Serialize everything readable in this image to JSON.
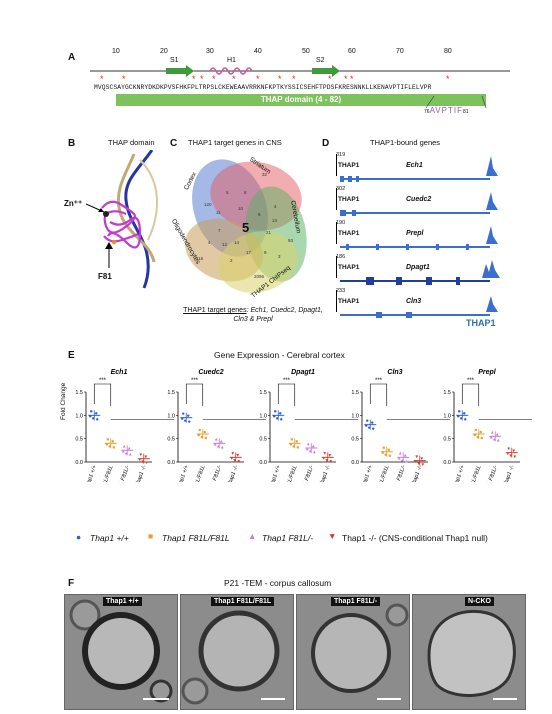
{
  "panels": {
    "a": "A",
    "b": "B",
    "c": "C",
    "d": "D",
    "e": "E",
    "f": "F"
  },
  "panel_a": {
    "ticks": [
      "10",
      "20",
      "30",
      "40",
      "50",
      "60",
      "70",
      "80"
    ],
    "structure_labels": {
      "s1": "S1",
      "h1": "H1",
      "s2": "S2"
    },
    "sequence": "MVQSCSAYGCKNRYDKDKPVSFHKFPLTRPSLCKEWEAAVRRKNFKPTKYSSICSEHFTPDSFKRESNNKLLKENAVPTIFLELVPR",
    "domain_label": "THAP domain (4 - 82)",
    "motif": "AVPTIF",
    "motif_prefix": "76",
    "motif_suffix": "81"
  },
  "panel_b": {
    "title": "THAP domain",
    "zn_label": "Zn⁺⁺",
    "f81_label": "F81"
  },
  "panel_c": {
    "title": "THAP1 target genes in CNS",
    "sets": [
      "Cortex",
      "Striatum",
      "Cerebellum",
      "Oligodendrocytes",
      "THAP1 ChIPseq"
    ],
    "center": "5",
    "region_counts": [
      "120",
      "32",
      "93",
      "116",
      "2096",
      "5",
      "8",
      "4",
      "7",
      "3",
      "2",
      "9",
      "11",
      "6",
      "14",
      "21",
      "10",
      "12",
      "13",
      "17",
      "4"
    ],
    "caption_prefix": "THAP1 target genes",
    "caption_genes": ": Ech1, Cuedc2, Dpagt1, Cln3 & Prepl"
  },
  "panel_d": {
    "title": "THAP1-bound genes",
    "tracks": [
      {
        "scale": "319",
        "label": "THAP1",
        "gene": "Ech1"
      },
      {
        "scale": "302",
        "label": "THAP1",
        "gene": "Cuedc2"
      },
      {
        "scale": "190",
        "label": "THAP1",
        "gene": "Prepl"
      },
      {
        "scale": "186",
        "label": "THAP1",
        "gene": "Dpagt1"
      },
      {
        "scale": "233",
        "label": "THAP1",
        "gene": "Cln3"
      }
    ],
    "legend": "THAP1"
  },
  "panel_e": {
    "title": "Gene Expression - Cerebral cortex",
    "ylabel": "Fold Change",
    "yticks": [
      "1.5",
      "1.0",
      "0.5",
      "0.0"
    ],
    "sig": "***",
    "genes": [
      "Ech1",
      "Cuedc2",
      "Dpagt1",
      "Cln3",
      "Prepl"
    ],
    "xlabels": [
      "Thap1 +/+",
      "Thap1 F81L/F81L",
      "Thap1 F81L/-",
      "Thap1 -/-"
    ],
    "legend": [
      {
        "label": "Thap1 +/+",
        "color": "#2b5fd1"
      },
      {
        "label": "Thap1 F81L/F81L",
        "color": "#e6a02d"
      },
      {
        "label": "Thap1 F81L/-",
        "color": "#c97bd6"
      },
      {
        "label": "Thap1 -/- (CNS-conditional Thap1 null)",
        "color": "#d23b2b"
      }
    ]
  },
  "chart_data": [
    {
      "type": "scatter",
      "title": "Ech1",
      "ylabel": "Fold Change",
      "ylim": [
        0,
        1.5
      ],
      "categories": [
        "Thap1 +/+",
        "Thap1 F81L/F81L",
        "Thap1 F81L/-",
        "Thap1 -/-"
      ],
      "values": [
        1.0,
        0.4,
        0.25,
        0.07
      ]
    },
    {
      "type": "scatter",
      "title": "Cuedc2",
      "ylabel": "Fold Change",
      "ylim": [
        0,
        1.5
      ],
      "categories": [
        "Thap1 +/+",
        "Thap1 F81L/F81L",
        "Thap1 F81L/-",
        "Thap1 -/-"
      ],
      "values": [
        0.95,
        0.6,
        0.4,
        0.1
      ]
    },
    {
      "type": "scatter",
      "title": "Dpagt1",
      "ylabel": "Fold Change",
      "ylim": [
        0,
        1.5
      ],
      "categories": [
        "Thap1 +/+",
        "Thap1 F81L/F81L",
        "Thap1 F81L/-",
        "Thap1 -/-"
      ],
      "values": [
        1.0,
        0.4,
        0.3,
        0.1
      ]
    },
    {
      "type": "scatter",
      "title": "Cln3",
      "ylabel": "Fold Change",
      "ylim": [
        0,
        1.5
      ],
      "categories": [
        "Thap1 +/+",
        "Thap1 F81L/F81L",
        "Thap1 F81L/-",
        "Thap1 -/-"
      ],
      "values": [
        0.8,
        0.22,
        0.1,
        0.03
      ]
    },
    {
      "type": "scatter",
      "title": "Prepl",
      "ylabel": "Fold Change",
      "ylim": [
        0,
        1.5
      ],
      "categories": [
        "Thap1 +/+",
        "Thap1 F81L/F81L",
        "Thap1 F81L/-",
        "Thap1 -/-"
      ],
      "values": [
        1.0,
        0.6,
        0.55,
        0.2
      ]
    }
  ],
  "panel_f": {
    "title": "P21 -TEM - corpus callosum",
    "images": [
      {
        "tag": "Thap1 +/+"
      },
      {
        "tag": "Thap1 F81L/F81L"
      },
      {
        "tag": "Thap1 F81L/-"
      },
      {
        "tag": "N-CKO"
      }
    ]
  }
}
